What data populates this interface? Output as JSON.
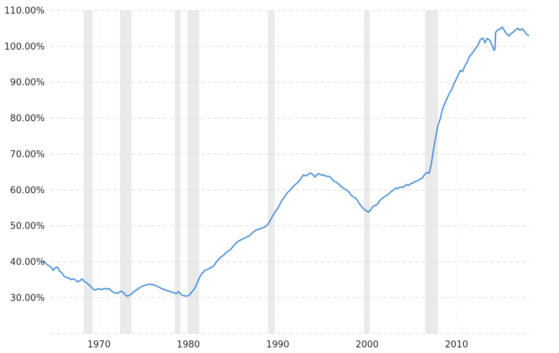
{
  "chart_data": {
    "type": "line",
    "title": "",
    "grid": true,
    "background_color": "#ffffff",
    "line_color": "#4e92d6",
    "recession_band_color": "#eaeaea",
    "h_gridline_color": "#d9d9d9",
    "v_gridline_color": "#e8e8e8",
    "label_color": "#222222",
    "x_axis": {
      "ticks": [
        1970,
        1980,
        1990,
        2000,
        2010
      ],
      "tick_labels": [
        "1970",
        "1980",
        "1990",
        "2000",
        "2010"
      ],
      "range": [
        1963.0,
        2018.2
      ]
    },
    "y_axis": {
      "tick_values": [
        110,
        100,
        90,
        80,
        70,
        60,
        50,
        40,
        30
      ],
      "tick_labels": [
        "110.00%",
        "100.00%",
        "90.00%",
        "80.00%",
        "70.00%",
        "60.00%",
        "50.00%",
        "40.00%",
        "30.00%"
      ],
      "gridline_values": [
        110,
        100,
        90,
        80,
        70,
        60,
        50,
        40,
        30,
        20
      ],
      "range": [
        20,
        110
      ]
    },
    "recession_bands": [
      [
        1968.3,
        1969.27
      ],
      [
        1972.35,
        1973.64
      ],
      [
        1978.47,
        1979.12
      ],
      [
        1979.9,
        1981.2
      ],
      [
        1988.89,
        1989.67
      ],
      [
        1999.63,
        2000.3
      ],
      [
        2006.48,
        2007.92
      ]
    ],
    "series": [
      {
        "name": "debt-to-gdp-percent",
        "points": [
          [
            1963.6,
            39.9
          ],
          [
            1963.85,
            40.2
          ],
          [
            1964.1,
            39.4
          ],
          [
            1964.35,
            38.9
          ],
          [
            1964.6,
            38.6
          ],
          [
            1964.86,
            37.6
          ],
          [
            1965.11,
            38.3
          ],
          [
            1965.36,
            38.5
          ],
          [
            1965.61,
            37.3
          ],
          [
            1965.86,
            36.9
          ],
          [
            1966.11,
            35.9
          ],
          [
            1966.36,
            35.6
          ],
          [
            1966.61,
            35.5
          ],
          [
            1966.86,
            35.0
          ],
          [
            1967.11,
            35.3
          ],
          [
            1967.36,
            34.9
          ],
          [
            1967.61,
            34.4
          ],
          [
            1967.86,
            34.7
          ],
          [
            1968.11,
            35.2
          ],
          [
            1968.37,
            34.5
          ],
          [
            1968.62,
            34.1
          ],
          [
            1968.87,
            33.6
          ],
          [
            1969.12,
            33.0
          ],
          [
            1969.37,
            32.3
          ],
          [
            1969.62,
            32.1
          ],
          [
            1969.87,
            32.5
          ],
          [
            1970.12,
            32.4
          ],
          [
            1970.37,
            32.2
          ],
          [
            1970.62,
            32.6
          ],
          [
            1970.87,
            32.4
          ],
          [
            1971.12,
            32.5
          ],
          [
            1971.37,
            31.9
          ],
          [
            1971.62,
            31.5
          ],
          [
            1971.87,
            31.3
          ],
          [
            1972.12,
            31.2
          ],
          [
            1972.37,
            31.7
          ],
          [
            1972.62,
            31.7
          ],
          [
            1972.87,
            31.0
          ],
          [
            1973.12,
            30.4
          ],
          [
            1973.37,
            30.6
          ],
          [
            1973.62,
            31.0
          ],
          [
            1973.87,
            31.6
          ],
          [
            1974.12,
            32.0
          ],
          [
            1974.37,
            32.4
          ],
          [
            1974.62,
            32.9
          ],
          [
            1974.87,
            33.2
          ],
          [
            1975.12,
            33.4
          ],
          [
            1975.37,
            33.6
          ],
          [
            1975.62,
            33.8
          ],
          [
            1975.87,
            33.6
          ],
          [
            1976.12,
            33.6
          ],
          [
            1976.37,
            33.3
          ],
          [
            1976.62,
            33.0
          ],
          [
            1976.87,
            32.7
          ],
          [
            1977.12,
            32.4
          ],
          [
            1977.37,
            32.2
          ],
          [
            1977.62,
            31.9
          ],
          [
            1977.87,
            31.8
          ],
          [
            1978.13,
            31.5
          ],
          [
            1978.38,
            31.4
          ],
          [
            1978.63,
            31.1
          ],
          [
            1978.88,
            31.7
          ],
          [
            1979.13,
            31.0
          ],
          [
            1979.38,
            30.6
          ],
          [
            1979.63,
            30.5
          ],
          [
            1979.88,
            30.4
          ],
          [
            1980.13,
            30.8
          ],
          [
            1980.38,
            31.6
          ],
          [
            1980.63,
            32.3
          ],
          [
            1980.88,
            33.4
          ],
          [
            1981.13,
            35.0
          ],
          [
            1981.38,
            36.3
          ],
          [
            1981.63,
            37.0
          ],
          [
            1981.88,
            37.7
          ],
          [
            1982.13,
            37.8
          ],
          [
            1982.38,
            38.2
          ],
          [
            1982.63,
            38.5
          ],
          [
            1982.88,
            39.0
          ],
          [
            1983.13,
            39.9
          ],
          [
            1983.38,
            40.7
          ],
          [
            1983.63,
            41.3
          ],
          [
            1983.88,
            41.7
          ],
          [
            1984.13,
            42.3
          ],
          [
            1984.38,
            42.9
          ],
          [
            1984.63,
            43.2
          ],
          [
            1984.88,
            43.9
          ],
          [
            1985.13,
            44.6
          ],
          [
            1985.39,
            45.4
          ],
          [
            1985.64,
            45.8
          ],
          [
            1985.89,
            46.1
          ],
          [
            1986.14,
            46.4
          ],
          [
            1986.39,
            46.7
          ],
          [
            1986.64,
            47.0
          ],
          [
            1986.89,
            47.3
          ],
          [
            1987.14,
            48.0
          ],
          [
            1987.39,
            48.5
          ],
          [
            1987.64,
            48.9
          ],
          [
            1987.89,
            49.0
          ],
          [
            1988.14,
            49.3
          ],
          [
            1988.39,
            49.5
          ],
          [
            1988.64,
            49.8
          ],
          [
            1988.89,
            50.4
          ],
          [
            1989.14,
            51.4
          ],
          [
            1989.39,
            52.6
          ],
          [
            1989.64,
            53.6
          ],
          [
            1989.89,
            54.5
          ],
          [
            1990.14,
            55.5
          ],
          [
            1990.39,
            56.8
          ],
          [
            1990.64,
            57.7
          ],
          [
            1990.89,
            58.6
          ],
          [
            1991.14,
            59.4
          ],
          [
            1991.39,
            60.0
          ],
          [
            1991.65,
            60.7
          ],
          [
            1991.9,
            61.4
          ],
          [
            1992.15,
            61.9
          ],
          [
            1992.4,
            62.5
          ],
          [
            1992.65,
            63.4
          ],
          [
            1992.9,
            64.2
          ],
          [
            1993.15,
            63.9
          ],
          [
            1993.4,
            64.3
          ],
          [
            1993.65,
            64.7
          ],
          [
            1993.9,
            64.4
          ],
          [
            1994.15,
            63.6
          ],
          [
            1994.4,
            64.3
          ],
          [
            1994.65,
            64.5
          ],
          [
            1994.9,
            64.1
          ],
          [
            1995.15,
            64.2
          ],
          [
            1995.4,
            63.8
          ],
          [
            1995.65,
            63.8
          ],
          [
            1995.9,
            63.6
          ],
          [
            1996.15,
            62.7
          ],
          [
            1996.4,
            62.3
          ],
          [
            1996.65,
            62.0
          ],
          [
            1996.91,
            61.4
          ],
          [
            1997.16,
            60.8
          ],
          [
            1997.41,
            60.4
          ],
          [
            1997.66,
            60.0
          ],
          [
            1997.91,
            59.6
          ],
          [
            1998.16,
            58.7
          ],
          [
            1998.41,
            58.1
          ],
          [
            1998.66,
            57.8
          ],
          [
            1998.91,
            57.1
          ],
          [
            1999.16,
            56.1
          ],
          [
            1999.41,
            55.3
          ],
          [
            1999.66,
            54.6
          ],
          [
            1999.91,
            54.2
          ],
          [
            2000.16,
            53.8
          ],
          [
            2000.41,
            54.5
          ],
          [
            2000.66,
            55.4
          ],
          [
            2000.91,
            55.7
          ],
          [
            2001.16,
            56.0
          ],
          [
            2001.41,
            57.0
          ],
          [
            2001.66,
            57.6
          ],
          [
            2001.91,
            58.0
          ],
          [
            2002.17,
            58.5
          ],
          [
            2002.42,
            58.9
          ],
          [
            2002.67,
            59.5
          ],
          [
            2002.92,
            59.9
          ],
          [
            2003.17,
            60.5
          ],
          [
            2003.42,
            60.4
          ],
          [
            2003.67,
            60.8
          ],
          [
            2003.92,
            60.7
          ],
          [
            2004.17,
            61.0
          ],
          [
            2004.42,
            61.5
          ],
          [
            2004.67,
            61.3
          ],
          [
            2004.92,
            61.8
          ],
          [
            2005.17,
            62.0
          ],
          [
            2005.42,
            62.4
          ],
          [
            2005.67,
            62.6
          ],
          [
            2005.92,
            63.0
          ],
          [
            2006.17,
            63.3
          ],
          [
            2006.43,
            64.3
          ],
          [
            2006.68,
            64.9
          ],
          [
            2006.93,
            64.6
          ],
          [
            2007.18,
            67.2
          ],
          [
            2007.43,
            71.3
          ],
          [
            2007.68,
            74.8
          ],
          [
            2007.93,
            78.0
          ],
          [
            2008.18,
            79.8
          ],
          [
            2008.43,
            82.5
          ],
          [
            2008.68,
            84.0
          ],
          [
            2008.93,
            85.4
          ],
          [
            2009.18,
            86.8
          ],
          [
            2009.43,
            87.8
          ],
          [
            2009.68,
            89.4
          ],
          [
            2009.93,
            90.6
          ],
          [
            2010.18,
            92.0
          ],
          [
            2010.43,
            93.3
          ],
          [
            2010.69,
            93.0
          ],
          [
            2010.94,
            94.6
          ],
          [
            2011.19,
            95.6
          ],
          [
            2011.44,
            97.1
          ],
          [
            2011.69,
            97.9
          ],
          [
            2011.94,
            98.7
          ],
          [
            2012.19,
            99.6
          ],
          [
            2012.44,
            100.5
          ],
          [
            2012.69,
            102.0
          ],
          [
            2012.94,
            102.3
          ],
          [
            2013.19,
            101.0
          ],
          [
            2013.44,
            102.2
          ],
          [
            2013.69,
            101.8
          ],
          [
            2013.95,
            100.5
          ],
          [
            2014.2,
            98.9
          ],
          [
            2014.31,
            99.2
          ],
          [
            2014.38,
            103.9
          ],
          [
            2014.61,
            104.6
          ],
          [
            2014.86,
            104.8
          ],
          [
            2015.11,
            105.4
          ],
          [
            2015.36,
            104.4
          ],
          [
            2015.61,
            103.5
          ],
          [
            2015.86,
            102.9
          ],
          [
            2016.11,
            103.6
          ],
          [
            2016.36,
            104.0
          ],
          [
            2016.61,
            104.6
          ],
          [
            2016.86,
            105.0
          ],
          [
            2017.11,
            104.5
          ],
          [
            2017.36,
            104.9
          ],
          [
            2017.61,
            104.2
          ],
          [
            2017.86,
            103.3
          ],
          [
            2018.07,
            103.1
          ]
        ]
      }
    ]
  }
}
